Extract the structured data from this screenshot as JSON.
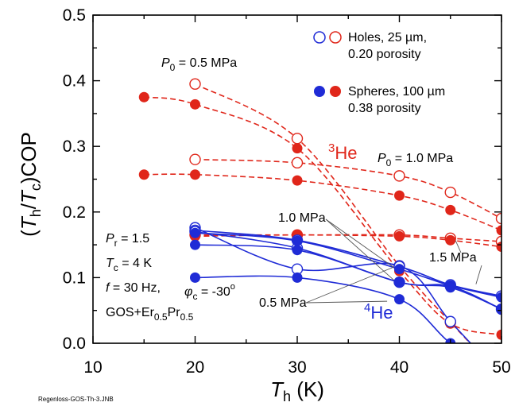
{
  "chart_data": {
    "type": "line",
    "xlabel": {
      "italic": "T",
      "sub": "h",
      "rest": " (K)"
    },
    "ylabel": {
      "open": "(",
      "t1": "T",
      "s1": "h",
      "mid": "/",
      "t2": "T",
      "s2": "c",
      "rest": ")COP"
    },
    "xlim": [
      10,
      50
    ],
    "ylim": [
      0,
      0.5
    ],
    "x_ticks": [
      "10",
      "20",
      "30",
      "40",
      "50"
    ],
    "y_ticks": [
      "0.0",
      "0.1",
      "0.2",
      "0.3",
      "0.4",
      "0.5"
    ],
    "legend": {
      "placement": "top-right",
      "holes": [
        "Holes, 25 µm,",
        "0.20 porosity"
      ],
      "spheres": [
        "Spheres, 100 µm",
        "0.38 porosity"
      ]
    },
    "annotations": {
      "p0_05": {
        "sym": "P",
        "sub": "0",
        "rest": " = 0.5 MPa"
      },
      "p0_10": {
        "sym": "P",
        "sub": "0",
        "rest": " = 1.0 MPa"
      },
      "he3": {
        "sup": "3",
        "rest": "He"
      },
      "he4": {
        "sup": "4",
        "rest": "He"
      },
      "mpa_10": "1.0 MPa",
      "mpa_15": "1.5 MPa",
      "mpa_05": "0.5 MPa",
      "pr": {
        "sym": "P",
        "sub": "r",
        "rest": " = 1.5"
      },
      "tc": {
        "sym": "T",
        "sub": "c",
        "rest": " = 4 K"
      },
      "freq": {
        "sym": "f",
        "rest": " = 30 Hz,"
      },
      "phic": {
        "sym": "φ",
        "sub": "c",
        "rest": " = -30",
        "sup": "o"
      },
      "gos": {
        "a": "GOS+Er",
        "b": "0.5",
        "c": "Pr",
        "d": "0.5"
      }
    },
    "footnote": "Regenloss-GOS-Th-3.JNB",
    "series": [
      {
        "helium": "3He",
        "marker": "open",
        "pressure": "0.5 MPa",
        "x": [
          20,
          30,
          40,
          45,
          50
        ],
        "y": [
          0.395,
          0.312,
          0.118,
          0.032,
          -0.05
        ]
      },
      {
        "helium": "3He",
        "marker": "open",
        "pressure": "1.0 MPa",
        "x": [
          20,
          30,
          40,
          45,
          50
        ],
        "y": [
          0.28,
          0.275,
          0.255,
          0.23,
          0.19
        ]
      },
      {
        "helium": "3He",
        "marker": "open",
        "pressure": "1.5 MPa",
        "x": [
          20,
          30,
          40,
          45,
          50
        ],
        "y": [
          0.165,
          0.165,
          0.165,
          0.16,
          0.155
        ]
      },
      {
        "helium": "3He",
        "marker": "filled",
        "pressure": "0.5 MPa",
        "x": [
          15,
          20,
          30,
          40,
          45,
          50
        ],
        "y": [
          0.375,
          0.364,
          0.297,
          0.11,
          0.03,
          0.013
        ]
      },
      {
        "helium": "3He",
        "marker": "filled",
        "pressure": "1.0 MPa",
        "x": [
          15,
          20,
          30,
          40,
          45,
          50
        ],
        "y": [
          0.257,
          0.257,
          0.248,
          0.225,
          0.203,
          0.172
        ]
      },
      {
        "helium": "3He",
        "marker": "filled",
        "pressure": "1.5 MPa",
        "x": [
          20,
          30,
          40,
          45,
          50
        ],
        "y": [
          0.163,
          0.165,
          0.163,
          0.157,
          0.147
        ]
      },
      {
        "helium": "4He",
        "marker": "open",
        "pressure": "0.5 MPa",
        "x": [
          20,
          30,
          40,
          45,
          50
        ],
        "y": [
          0.176,
          0.113,
          0.118,
          0.033,
          -0.05
        ]
      },
      {
        "helium": "4He",
        "marker": "open",
        "pressure": "1.0 MPa",
        "x": [
          20,
          30,
          40,
          45,
          50
        ],
        "y": [
          0.172,
          0.157,
          0.117,
          0.089,
          0.072
        ]
      },
      {
        "helium": "4He",
        "marker": "open",
        "pressure": "1.5 MPa",
        "x": [
          20,
          30,
          40,
          45,
          50
        ],
        "y": [
          0.17,
          0.145,
          0.093,
          0.087,
          0.052
        ]
      },
      {
        "helium": "4He",
        "marker": "filled",
        "pressure": "0.5 MPa",
        "x": [
          20,
          30,
          40,
          45,
          50
        ],
        "y": [
          0.1,
          0.1,
          0.067,
          0.0,
          -0.05
        ]
      },
      {
        "helium": "4He",
        "marker": "filled",
        "pressure": "1.0 MPa",
        "x": [
          20,
          30,
          40,
          45,
          50
        ],
        "y": [
          0.168,
          0.156,
          0.113,
          0.088,
          0.07
        ]
      },
      {
        "helium": "4He",
        "marker": "filled",
        "pressure": "1.5 MPa",
        "x": [
          20,
          30,
          40,
          45,
          50
        ],
        "y": [
          0.15,
          0.142,
          0.093,
          0.085,
          0.052
        ]
      }
    ],
    "colors": {
      "3He": "#e0261a",
      "4He": "#1f2bd6"
    }
  }
}
